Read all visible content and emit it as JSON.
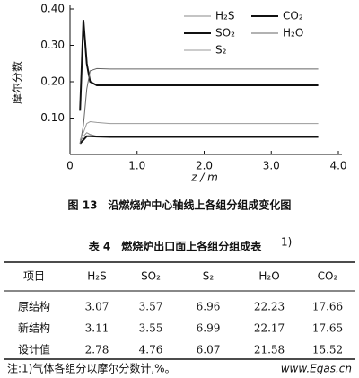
{
  "chart_data": {
    "type": "line",
    "y_label": "摩尔分数",
    "x_label": "z / m",
    "x": [
      0.15,
      0.2,
      0.25,
      0.3,
      0.4,
      0.6,
      1.0,
      2.0,
      3.0,
      3.7
    ],
    "series": [
      {
        "name": "H₂S",
        "color": "#888888",
        "line_width": 1,
        "values": [
          0.035,
          0.05,
          0.06,
          0.055,
          0.05,
          0.05,
          0.05,
          0.05,
          0.05,
          0.05
        ]
      },
      {
        "name": "CO₂",
        "color": "#111111",
        "line_width": 2,
        "values": [
          0.12,
          0.37,
          0.25,
          0.2,
          0.19,
          0.19,
          0.19,
          0.19,
          0.19,
          0.19
        ]
      },
      {
        "name": "SO₂",
        "color": "#111111",
        "line_width": 2,
        "values": [
          0.03,
          0.04,
          0.05,
          0.05,
          0.049,
          0.048,
          0.048,
          0.048,
          0.048,
          0.048
        ]
      },
      {
        "name": "H₂O",
        "color": "#666666",
        "line_width": 1,
        "values": [
          0.03,
          0.08,
          0.18,
          0.23,
          0.236,
          0.235,
          0.235,
          0.235,
          0.235,
          0.235
        ]
      },
      {
        "name": "S₂",
        "color": "#999999",
        "line_width": 1,
        "values": [
          0.04,
          0.06,
          0.085,
          0.09,
          0.088,
          0.085,
          0.085,
          0.085,
          0.085,
          0.085
        ]
      }
    ],
    "xlim": [
      0,
      4.0
    ],
    "xticks": [
      0,
      {
        "value": 1,
        "label": "1.0"
      },
      {
        "value": 2,
        "label": "2.0"
      },
      {
        "value": 3,
        "label": "3.0"
      },
      {
        "value": 4,
        "label": "4.0"
      }
    ],
    "ylim": [
      0,
      0.4
    ],
    "yticks": [
      {
        "value": 0.1,
        "label": "0.10"
      },
      {
        "value": 0.2,
        "label": "0.20"
      },
      {
        "value": 0.3,
        "label": "0.30"
      },
      {
        "value": 0.4,
        "label": "0.40"
      }
    ]
  },
  "figure_caption": "图 13　沿燃烧炉中心轴线上各组分组成变化图",
  "table": {
    "title": "表 4　燃烧炉出口面上各组分组成表",
    "title_note": "1)",
    "header": [
      "项目",
      "H₂S",
      "SO₂",
      "S₂",
      "H₂O",
      "CO₂"
    ],
    "rows": [
      [
        "原结构",
        3.07,
        3.57,
        6.96,
        22.23,
        17.66
      ],
      [
        "新结构",
        3.11,
        3.55,
        6.99,
        22.17,
        17.65
      ],
      [
        "设计值",
        2.78,
        4.76,
        6.07,
        21.58,
        15.52
      ]
    ],
    "note": "注:1)气体各组分以摩尔分数计,%。"
  },
  "watermark": "www.Egas.cn"
}
